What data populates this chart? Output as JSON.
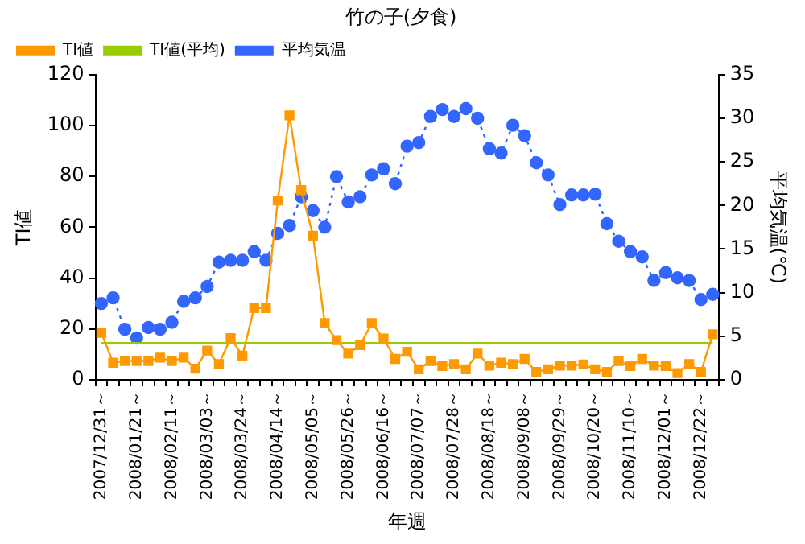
{
  "chart_data": {
    "type": "line",
    "title": "竹の子(夕食)",
    "xlabel": "年週",
    "ylabel": "TI値",
    "y2label": "平均気温(℃)",
    "categories": [
      "2007/12/31～",
      null,
      null,
      "2008/01/21～",
      null,
      null,
      "2008/02/11～",
      null,
      null,
      "2008/03/03～",
      null,
      null,
      "2008/03/24～",
      null,
      null,
      "2008/04/14～",
      null,
      null,
      "2008/05/05～",
      null,
      null,
      "2008/05/26～",
      null,
      null,
      "2008/06/16～",
      null,
      null,
      "2008/07/07～",
      null,
      null,
      "2008/07/28～",
      null,
      null,
      "2008/08/18～",
      null,
      null,
      "2008/09/08～",
      null,
      null,
      "2008/09/29～",
      null,
      null,
      "2008/10/20～",
      null,
      null,
      "2008/11/10～",
      null,
      null,
      "2008/12/01～",
      null,
      null,
      "2008/12/22～",
      null
    ],
    "series": [
      {
        "name": "TI値",
        "color": "#ff9900",
        "marker": "square",
        "line_style": "solid",
        "values": [
          18.5,
          6.7,
          7.4,
          7.4,
          7.4,
          8.7,
          7.4,
          8.7,
          4.4,
          11.5,
          6.2,
          16.4,
          9.5,
          28.2,
          28.2,
          70.5,
          104,
          74.6,
          56.7,
          22.3,
          15.6,
          10.3,
          13.6,
          22.3,
          16.2,
          8.2,
          11,
          4.1,
          7.4,
          5.4,
          6.2,
          4.1,
          10.3,
          5.6,
          6.7,
          6.2,
          8.2,
          3.1,
          4.1,
          5.6,
          5.6,
          6,
          4.1,
          3.1,
          7.4,
          5.4,
          8.2,
          5.6,
          5.4,
          2.6,
          6.2,
          3.1,
          17.9
        ]
      },
      {
        "name": "TI値(平均)",
        "color": "#99cc00",
        "marker": "none",
        "line_style": "solid",
        "values": [
          14.5,
          14.5,
          14.5,
          14.5,
          14.5,
          14.5,
          14.5,
          14.5,
          14.5,
          14.5,
          14.5,
          14.5,
          14.5,
          14.5,
          14.5,
          14.5,
          14.5,
          14.5,
          14.5,
          14.5,
          14.5,
          14.5,
          14.5,
          14.5,
          14.5,
          14.5,
          14.5,
          14.5,
          14.5,
          14.5,
          14.5,
          14.5,
          14.5,
          14.5,
          14.5,
          14.5,
          14.5,
          14.5,
          14.5,
          14.5,
          14.5,
          14.5,
          14.5,
          14.5,
          14.5,
          14.5,
          14.5,
          14.5,
          14.5,
          14.5,
          14.5,
          14.5,
          14.5
        ]
      },
      {
        "name": "平均気温",
        "color": "#3366ff",
        "marker": "circle",
        "line_style": "dotted",
        "axis": "y2",
        "values": [
          8.75,
          9.4,
          5.8,
          4.8,
          6,
          5.8,
          6.6,
          9,
          9.4,
          10.7,
          13.5,
          13.7,
          13.7,
          14.7,
          13.7,
          16.8,
          17.7,
          21,
          19.4,
          17.5,
          23.3,
          20.4,
          21,
          23.5,
          24.2,
          22.5,
          26.8,
          27.2,
          30.2,
          31,
          30.2,
          31.1,
          30,
          26.5,
          26,
          29.2,
          28,
          24.9,
          23.5,
          20.1,
          21.2,
          21.2,
          21.3,
          17.9,
          15.9,
          14.7,
          14.1,
          11.4,
          12.3,
          11.7,
          11.4,
          9.2,
          9.8
        ]
      }
    ],
    "ylim": [
      0,
      120
    ],
    "yticks": [
      0,
      20,
      40,
      60,
      80,
      100,
      120
    ],
    "y2lim": [
      0,
      35
    ],
    "y2ticks": [
      0,
      5,
      10,
      15,
      20,
      25,
      30,
      35
    ],
    "grid": false,
    "legend": "top left"
  }
}
